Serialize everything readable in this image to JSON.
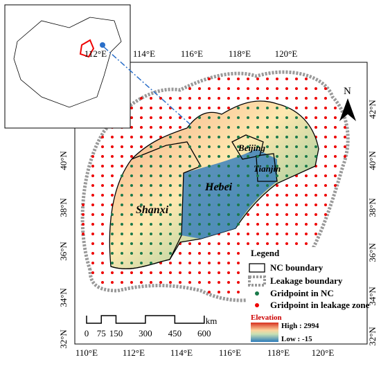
{
  "top_labels": [
    "112°E",
    "114°E",
    "116°E",
    "118°E",
    "120°E"
  ],
  "bottom_labels": [
    "110°E",
    "112°E",
    "114°E",
    "116°E",
    "118°E",
    "120°E"
  ],
  "left_labels": [
    "40°N",
    "38°N",
    "36°N",
    "34°N",
    "32°N"
  ],
  "right_labels": [
    "42°N",
    "40°N",
    "38°N",
    "36°N",
    "34°N",
    "32°N"
  ],
  "regions": [
    "Beijing",
    "Tianjin",
    "Hebei",
    "Shanxi"
  ],
  "north": "N",
  "legend": {
    "title": "Legend",
    "items": [
      "NC boundary",
      "Leakage boundary",
      "Gridpoint in NC",
      "Gridpoint in leakage zone"
    ],
    "elevation": "Elevation",
    "high": "High : 2994",
    "low": "Low : -15"
  },
  "scale": {
    "values": [
      0,
      75,
      150,
      300,
      450,
      600
    ],
    "unit": "km"
  }
}
